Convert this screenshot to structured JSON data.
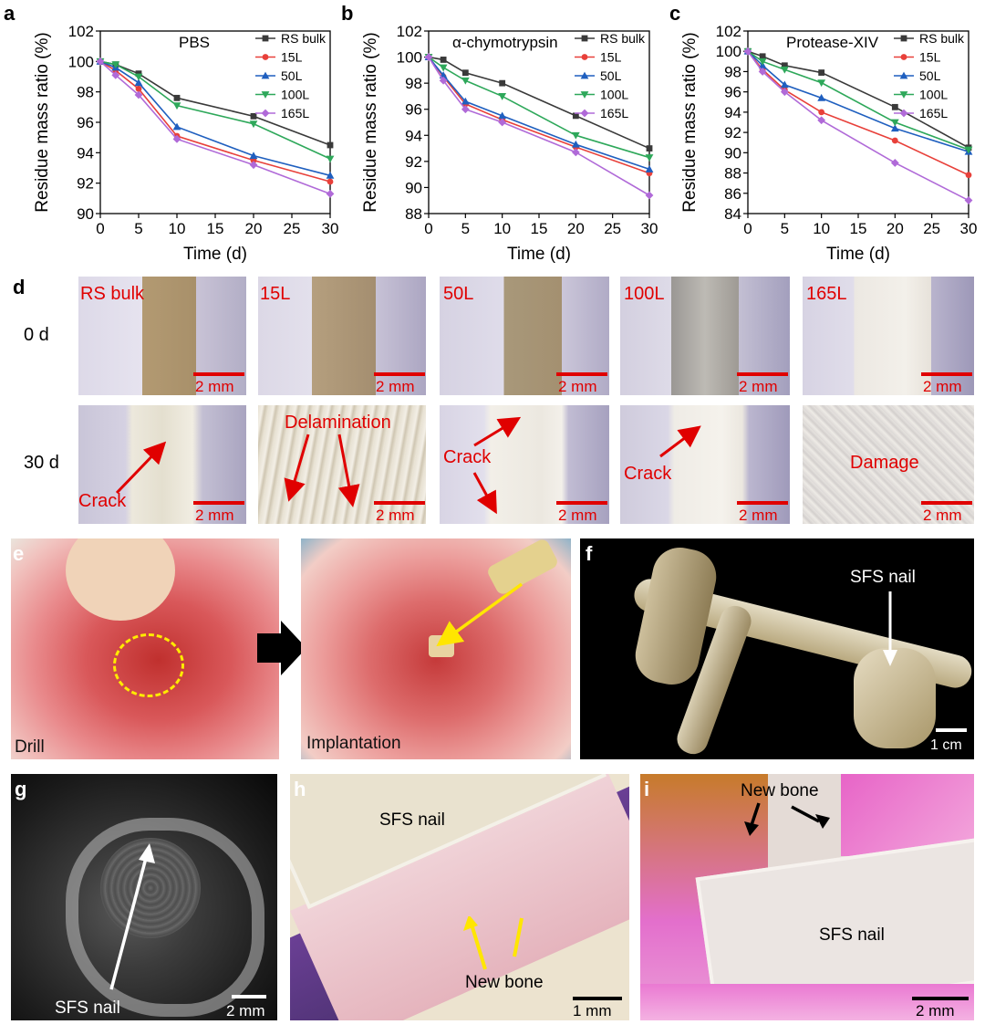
{
  "panel_labels": {
    "a": "a",
    "b": "b",
    "c": "c",
    "d": "d",
    "e": "e",
    "f": "f",
    "g": "g",
    "h": "h",
    "i": "i"
  },
  "chart_data": [
    {
      "type": "line",
      "panel": "a",
      "title": "PBS",
      "xlabel": "Time (d)",
      "ylabel": "Residue mass ratio (%)",
      "xlim": [
        0,
        30
      ],
      "ylim": [
        90,
        102
      ],
      "xticks": [
        0,
        5,
        10,
        15,
        20,
        25,
        30
      ],
      "yticks": [
        90,
        92,
        94,
        96,
        98,
        100,
        102
      ],
      "x": [
        0,
        2,
        5,
        10,
        20,
        30
      ],
      "series": [
        {
          "name": "RS bulk",
          "color": "#3a3a3a",
          "values": [
            100,
            99.8,
            99.2,
            97.6,
            96.4,
            94.5
          ]
        },
        {
          "name": "15L",
          "color": "#e8403a",
          "values": [
            100,
            99.4,
            98.2,
            95.1,
            93.5,
            92.1
          ]
        },
        {
          "name": "50L",
          "color": "#1f5fbf",
          "values": [
            100,
            99.6,
            98.6,
            95.7,
            93.8,
            92.5
          ]
        },
        {
          "name": "100L",
          "color": "#2ea85a",
          "values": [
            100,
            99.8,
            99.0,
            97.1,
            95.9,
            93.6
          ]
        },
        {
          "name": "165L",
          "color": "#b06ad8",
          "values": [
            100,
            99.1,
            97.8,
            94.9,
            93.2,
            91.3
          ]
        }
      ]
    },
    {
      "type": "line",
      "panel": "b",
      "title": "α-chymotrypsin",
      "xlabel": "Time (d)",
      "ylabel": "Residue mass ratio (%)",
      "xlim": [
        0,
        30
      ],
      "ylim": [
        88,
        102
      ],
      "xticks": [
        0,
        5,
        10,
        15,
        20,
        25,
        30
      ],
      "yticks": [
        88,
        90,
        92,
        94,
        96,
        98,
        100,
        102
      ],
      "x": [
        0,
        2,
        5,
        10,
        20,
        30
      ],
      "series": [
        {
          "name": "RS bulk",
          "color": "#3a3a3a",
          "values": [
            100,
            99.8,
            98.8,
            98.0,
            95.5,
            93.0
          ]
        },
        {
          "name": "15L",
          "color": "#e8403a",
          "values": [
            100,
            98.5,
            96.4,
            95.2,
            93.1,
            91.1
          ]
        },
        {
          "name": "50L",
          "color": "#1f5fbf",
          "values": [
            100,
            98.6,
            96.6,
            95.5,
            93.3,
            91.4
          ]
        },
        {
          "name": "100L",
          "color": "#2ea85a",
          "values": [
            100,
            99.2,
            98.2,
            97.0,
            94.0,
            92.3
          ]
        },
        {
          "name": "165L",
          "color": "#b06ad8",
          "values": [
            100,
            98.2,
            96.0,
            95.0,
            92.7,
            89.4
          ]
        }
      ]
    },
    {
      "type": "line",
      "panel": "c",
      "title": "Protease-XIV",
      "xlabel": "Time (d)",
      "ylabel": "Residue mass ratio (%)",
      "xlim": [
        0,
        30
      ],
      "ylim": [
        84,
        102
      ],
      "xticks": [
        0,
        5,
        10,
        15,
        20,
        25,
        30
      ],
      "yticks": [
        84,
        86,
        88,
        90,
        92,
        94,
        96,
        98,
        100,
        102
      ],
      "x": [
        0,
        2,
        5,
        10,
        20,
        30
      ],
      "series": [
        {
          "name": "RS bulk",
          "color": "#3a3a3a",
          "values": [
            100,
            99.5,
            98.6,
            97.9,
            94.5,
            90.5
          ]
        },
        {
          "name": "15L",
          "color": "#e8403a",
          "values": [
            100,
            98.2,
            96.2,
            94.0,
            91.2,
            87.8
          ]
        },
        {
          "name": "50L",
          "color": "#1f5fbf",
          "values": [
            100,
            98.6,
            96.7,
            95.4,
            92.4,
            90.1
          ]
        },
        {
          "name": "100L",
          "color": "#2ea85a",
          "values": [
            100,
            99.0,
            98.2,
            96.9,
            93.0,
            90.3
          ]
        },
        {
          "name": "165L",
          "color": "#b06ad8",
          "values": [
            100,
            98.0,
            96.0,
            93.2,
            89.0,
            85.3
          ]
        }
      ]
    }
  ],
  "panel_d": {
    "columns": [
      "RS bulk",
      "15L",
      "50L",
      "100L",
      "165L"
    ],
    "rows": [
      "0 d",
      "30 d"
    ],
    "scale_bar": "2 mm",
    "annotations_30d": [
      "Crack",
      "Delamination",
      "Crack",
      "Crack",
      "Damage"
    ]
  },
  "panel_e": {
    "left_caption": "Drill",
    "right_caption": "Implantation"
  },
  "panel_f": {
    "label": "SFS nail",
    "scale_bar": "1 cm"
  },
  "panel_g": {
    "label": "SFS nail",
    "scale_bar": "2 mm"
  },
  "panel_h": {
    "label": "SFS nail",
    "arrow_label": "New bone",
    "scale_bar": "1 mm"
  },
  "panel_i": {
    "label": "SFS nail",
    "arrow_label": "New bone",
    "scale_bar": "2 mm"
  }
}
